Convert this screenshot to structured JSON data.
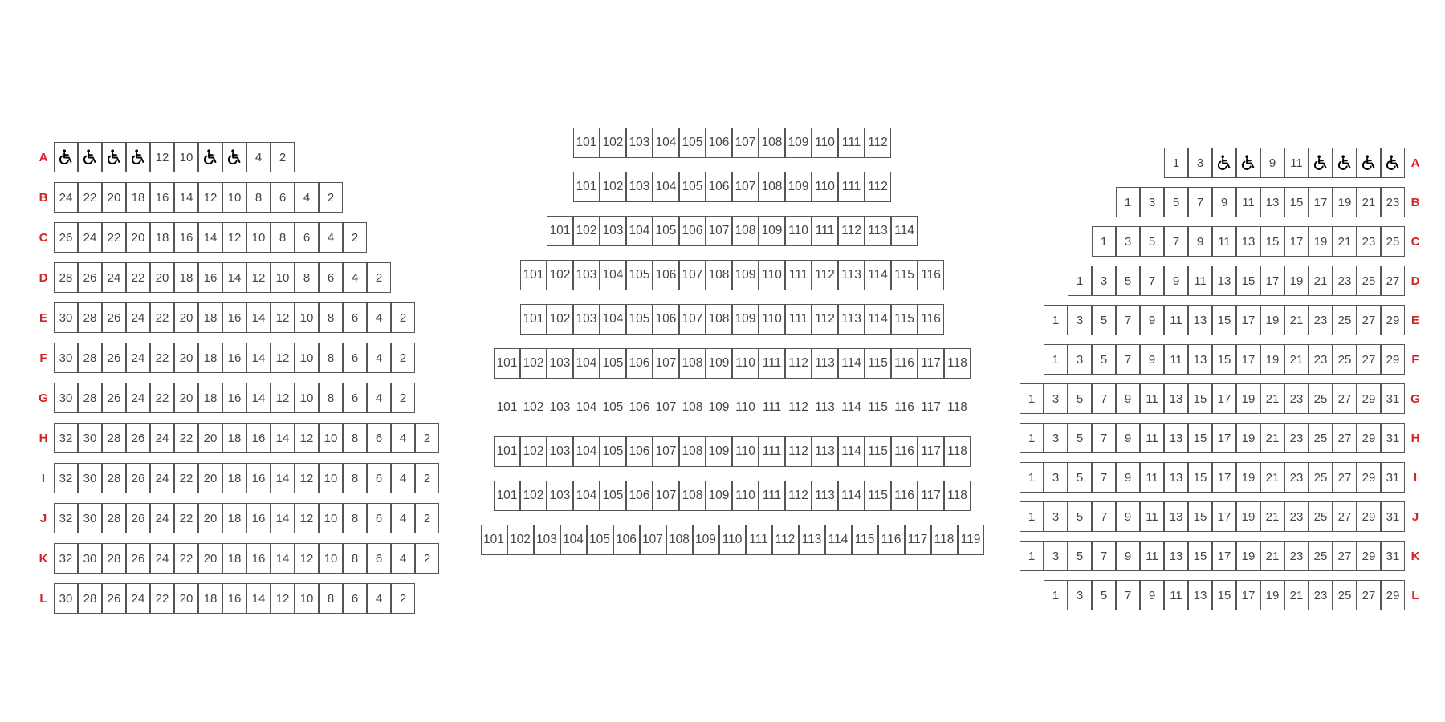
{
  "sections": {
    "left": {
      "rows": [
        {
          "label": "A",
          "seats": [
            "accessible",
            "accessible",
            "accessible",
            "accessible",
            "12",
            "10",
            "accessible",
            "accessible",
            "4",
            "2"
          ]
        },
        {
          "label": "B",
          "seats": [
            "24",
            "22",
            "20",
            "18",
            "16",
            "14",
            "12",
            "10",
            "8",
            "6",
            "4",
            "2"
          ]
        },
        {
          "label": "C",
          "seats": [
            "26",
            "24",
            "22",
            "20",
            "18",
            "16",
            "14",
            "12",
            "10",
            "8",
            "6",
            "4",
            "2"
          ]
        },
        {
          "label": "D",
          "seats": [
            "28",
            "26",
            "24",
            "22",
            "20",
            "18",
            "16",
            "14",
            "12",
            "10",
            "8",
            "6",
            "4",
            "2"
          ]
        },
        {
          "label": "E",
          "seats": [
            "30",
            "28",
            "26",
            "24",
            "22",
            "20",
            "18",
            "16",
            "14",
            "12",
            "10",
            "8",
            "6",
            "4",
            "2"
          ]
        },
        {
          "label": "F",
          "seats": [
            "30",
            "28",
            "26",
            "24",
            "22",
            "20",
            "18",
            "16",
            "14",
            "12",
            "10",
            "8",
            "6",
            "4",
            "2"
          ]
        },
        {
          "label": "G",
          "seats": [
            "30",
            "28",
            "26",
            "24",
            "22",
            "20",
            "18",
            "16",
            "14",
            "12",
            "10",
            "8",
            "6",
            "4",
            "2"
          ]
        },
        {
          "label": "H",
          "seats": [
            "32",
            "30",
            "28",
            "26",
            "24",
            "22",
            "20",
            "18",
            "16",
            "14",
            "12",
            "10",
            "8",
            "6",
            "4",
            "2"
          ]
        },
        {
          "label": "I",
          "seats": [
            "32",
            "30",
            "28",
            "26",
            "24",
            "22",
            "20",
            "18",
            "16",
            "14",
            "12",
            "10",
            "8",
            "6",
            "4",
            "2"
          ]
        },
        {
          "label": "J",
          "seats": [
            "32",
            "30",
            "28",
            "26",
            "24",
            "22",
            "20",
            "18",
            "16",
            "14",
            "12",
            "10",
            "8",
            "6",
            "4",
            "2"
          ]
        },
        {
          "label": "K",
          "seats": [
            "32",
            "30",
            "28",
            "26",
            "24",
            "22",
            "20",
            "18",
            "16",
            "14",
            "12",
            "10",
            "8",
            "6",
            "4",
            "2"
          ]
        },
        {
          "label": "L",
          "seats": [
            "30",
            "28",
            "26",
            "24",
            "22",
            "20",
            "18",
            "16",
            "14",
            "12",
            "10",
            "8",
            "6",
            "4",
            "2"
          ]
        }
      ]
    },
    "center": {
      "rows": [
        {
          "seats": [
            "101",
            "102",
            "103",
            "104",
            "105",
            "106",
            "107",
            "108",
            "109",
            "110",
            "111",
            "112"
          ]
        },
        {
          "seats": [
            "101",
            "102",
            "103",
            "104",
            "105",
            "106",
            "107",
            "108",
            "109",
            "110",
            "111",
            "112"
          ]
        },
        {
          "seats": [
            "101",
            "102",
            "103",
            "104",
            "105",
            "106",
            "107",
            "108",
            "109",
            "110",
            "111",
            "112",
            "113",
            "114"
          ]
        },
        {
          "seats": [
            "101",
            "102",
            "103",
            "104",
            "105",
            "106",
            "107",
            "108",
            "109",
            "110",
            "111",
            "112",
            "113",
            "114",
            "115",
            "116"
          ]
        },
        {
          "seats": [
            "101",
            "102",
            "103",
            "104",
            "105",
            "106",
            "107",
            "108",
            "109",
            "110",
            "111",
            "112",
            "113",
            "114",
            "115",
            "116"
          ]
        },
        {
          "seats": [
            "101",
            "102",
            "103",
            "104",
            "105",
            "106",
            "107",
            "108",
            "109",
            "110",
            "111",
            "112",
            "113",
            "114",
            "115",
            "116",
            "117",
            "118"
          ]
        },
        {
          "seats": [
            "101",
            "102",
            "103",
            "104",
            "105",
            "106",
            "107",
            "108",
            "109",
            "110",
            "111",
            "112",
            "113",
            "114",
            "115",
            "116",
            "117",
            "118"
          ],
          "borderless": true
        },
        {
          "seats": [
            "101",
            "102",
            "103",
            "104",
            "105",
            "106",
            "107",
            "108",
            "109",
            "110",
            "111",
            "112",
            "113",
            "114",
            "115",
            "116",
            "117",
            "118"
          ]
        },
        {
          "seats": [
            "101",
            "102",
            "103",
            "104",
            "105",
            "106",
            "107",
            "108",
            "109",
            "110",
            "111",
            "112",
            "113",
            "114",
            "115",
            "116",
            "117",
            "118"
          ]
        },
        {
          "seats": [
            "101",
            "102",
            "103",
            "104",
            "105",
            "106",
            "107",
            "108",
            "109",
            "110",
            "111",
            "112",
            "113",
            "114",
            "115",
            "116",
            "117",
            "118",
            "119"
          ]
        }
      ]
    },
    "right": {
      "rows": [
        {
          "label": "A",
          "seats": [
            "1",
            "3",
            "accessible",
            "accessible",
            "9",
            "11",
            "accessible",
            "accessible",
            "accessible",
            "accessible"
          ]
        },
        {
          "label": "B",
          "seats": [
            "1",
            "3",
            "5",
            "7",
            "9",
            "11",
            "13",
            "15",
            "17",
            "19",
            "21",
            "23"
          ]
        },
        {
          "label": "C",
          "seats": [
            "1",
            "3",
            "5",
            "7",
            "9",
            "11",
            "13",
            "15",
            "17",
            "19",
            "21",
            "23",
            "25"
          ]
        },
        {
          "label": "D",
          "seats": [
            "1",
            "3",
            "5",
            "7",
            "9",
            "11",
            "13",
            "15",
            "17",
            "19",
            "21",
            "23",
            "25",
            "27"
          ]
        },
        {
          "label": "E",
          "seats": [
            "1",
            "3",
            "5",
            "7",
            "9",
            "11",
            "13",
            "15",
            "17",
            "19",
            "21",
            "23",
            "25",
            "27",
            "29"
          ]
        },
        {
          "label": "F",
          "seats": [
            "1",
            "3",
            "5",
            "7",
            "9",
            "11",
            "13",
            "15",
            "17",
            "19",
            "21",
            "23",
            "25",
            "27",
            "29"
          ]
        },
        {
          "label": "G",
          "seats": [
            "1",
            "3",
            "5",
            "7",
            "9",
            "11",
            "13",
            "15",
            "17",
            "19",
            "21",
            "23",
            "25",
            "27",
            "29",
            "31"
          ]
        },
        {
          "label": "H",
          "seats": [
            "1",
            "3",
            "5",
            "7",
            "9",
            "11",
            "13",
            "15",
            "17",
            "19",
            "21",
            "23",
            "25",
            "27",
            "29",
            "31"
          ]
        },
        {
          "label": "I",
          "seats": [
            "1",
            "3",
            "5",
            "7",
            "9",
            "11",
            "13",
            "15",
            "17",
            "19",
            "21",
            "23",
            "25",
            "27",
            "29",
            "31"
          ]
        },
        {
          "label": "J",
          "seats": [
            "1",
            "3",
            "5",
            "7",
            "9",
            "11",
            "13",
            "15",
            "17",
            "19",
            "21",
            "23",
            "25",
            "27",
            "29",
            "31"
          ]
        },
        {
          "label": "K",
          "seats": [
            "1",
            "3",
            "5",
            "7",
            "9",
            "11",
            "13",
            "15",
            "17",
            "19",
            "21",
            "23",
            "25",
            "27",
            "29",
            "31"
          ]
        },
        {
          "label": "L",
          "seats": [
            "1",
            "3",
            "5",
            "7",
            "9",
            "11",
            "13",
            "15",
            "17",
            "19",
            "21",
            "23",
            "25",
            "27",
            "29"
          ]
        }
      ]
    }
  },
  "colors": {
    "row_label": "#d2232a",
    "seat_border": "#555555",
    "seat_text": "#444444"
  },
  "icons": {
    "accessible": "wheelchair-icon"
  }
}
